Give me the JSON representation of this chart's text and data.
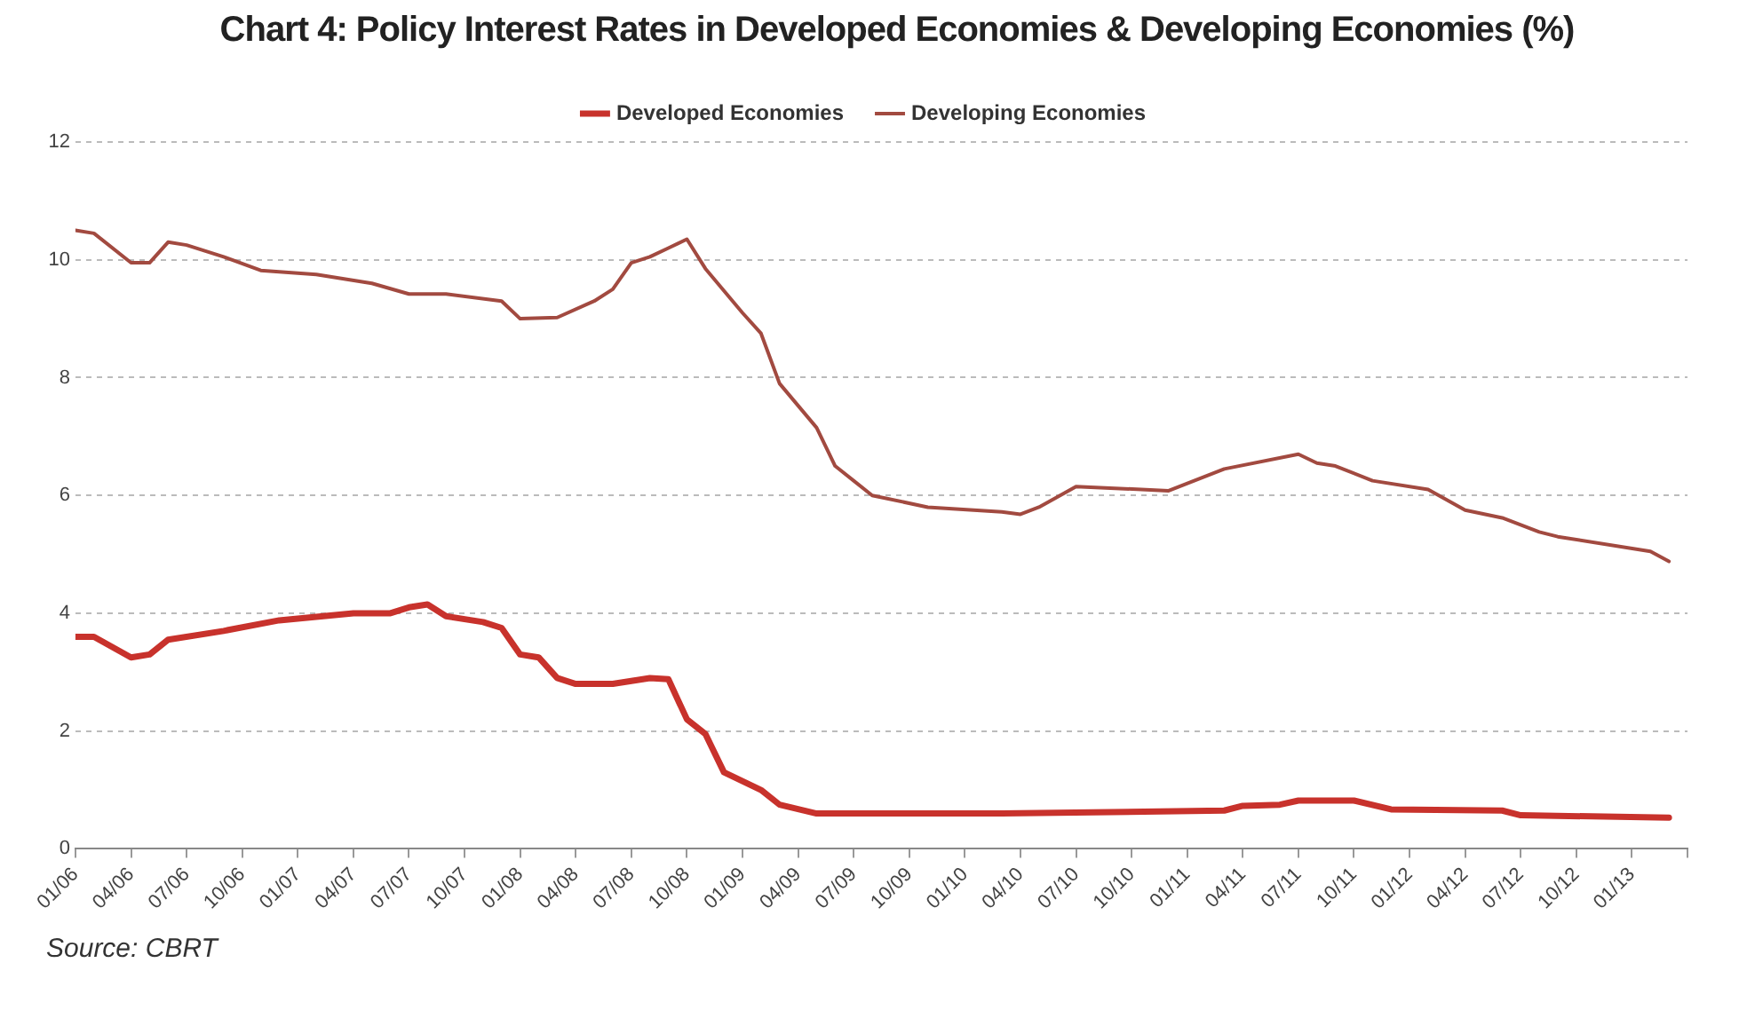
{
  "chart_data": {
    "type": "line",
    "title": "Chart 4: Policy Interest Rates in Developed Economies & Developing Economies (%)",
    "annotations": [
      "Source: CBRT"
    ],
    "xlim": [
      "2006-01",
      "2013-04"
    ],
    "xticks": [
      {
        "value": "2006-01",
        "label": "01/06"
      },
      {
        "value": "2006-04",
        "label": "04/06"
      },
      {
        "value": "2006-07",
        "label": "07/06"
      },
      {
        "value": "2006-10",
        "label": "10/06"
      },
      {
        "value": "2007-01",
        "label": "01/07"
      },
      {
        "value": "2007-04",
        "label": "04/07"
      },
      {
        "value": "2007-07",
        "label": "07/07"
      },
      {
        "value": "2007-10",
        "label": "10/07"
      },
      {
        "value": "2008-01",
        "label": "01/08"
      },
      {
        "value": "2008-04",
        "label": "04/08"
      },
      {
        "value": "2008-07",
        "label": "07/08"
      },
      {
        "value": "2008-10",
        "label": "10/08"
      },
      {
        "value": "2009-01",
        "label": "01/09"
      },
      {
        "value": "2009-04",
        "label": "04/09"
      },
      {
        "value": "2009-07",
        "label": "07/09"
      },
      {
        "value": "2009-10",
        "label": "10/09"
      },
      {
        "value": "2010-01",
        "label": "01/10"
      },
      {
        "value": "2010-04",
        "label": "04/10"
      },
      {
        "value": "2010-07",
        "label": "07/10"
      },
      {
        "value": "2010-10",
        "label": "10/10"
      },
      {
        "value": "2011-01",
        "label": "01/11"
      },
      {
        "value": "2011-04",
        "label": "04/11"
      },
      {
        "value": "2011-07",
        "label": "07/11"
      },
      {
        "value": "2011-10",
        "label": "10/11"
      },
      {
        "value": "2012-01",
        "label": "01/12"
      },
      {
        "value": "2012-04",
        "label": "04/12"
      },
      {
        "value": "2012-07",
        "label": "07/12"
      },
      {
        "value": "2012-10",
        "label": "10/12"
      },
      {
        "value": "2013-01",
        "label": "01/13"
      },
      {
        "value": "2013-04",
        "label": null
      }
    ],
    "ylim": [
      0,
      12
    ],
    "yticks": [
      0,
      2,
      4,
      6,
      8,
      10,
      12
    ],
    "grid": "y",
    "legend": "top",
    "marker": "none",
    "line_style": "solid",
    "series": [
      {
        "name": "Developed Economies",
        "color": "#c8322c",
        "x": [
          "2006-01",
          "2006-02",
          "2006-04",
          "2006-05",
          "2006-06",
          "2006-09",
          "2006-12",
          "2007-04",
          "2007-06",
          "2007-07",
          "2007-08",
          "2007-09",
          "2007-11",
          "2007-12",
          "2008-01",
          "2008-02",
          "2008-03",
          "2008-04",
          "2008-06",
          "2008-08",
          "2008-09",
          "2008-10",
          "2008-11",
          "2008-12",
          "2009-02",
          "2009-03",
          "2009-05",
          "2010-03",
          "2011-03",
          "2011-04",
          "2011-06",
          "2011-07",
          "2011-10",
          "2011-12",
          "2012-06",
          "2012-07",
          "2013-03"
        ],
        "values": [
          3.6,
          3.6,
          3.25,
          3.3,
          3.55,
          3.7,
          3.88,
          4.0,
          4.0,
          4.1,
          4.15,
          3.95,
          3.85,
          3.75,
          3.3,
          3.25,
          2.9,
          2.8,
          2.8,
          2.9,
          2.88,
          2.2,
          1.95,
          1.3,
          1.0,
          0.75,
          0.6,
          0.6,
          0.65,
          0.73,
          0.75,
          0.82,
          0.82,
          0.67,
          0.65,
          0.57,
          0.53
        ]
      },
      {
        "name": "Developing Economies",
        "color": "#a24a40",
        "x": [
          "2006-01",
          "2006-02",
          "2006-04",
          "2006-05",
          "2006-06",
          "2006-07",
          "2006-09",
          "2006-11",
          "2007-02",
          "2007-05",
          "2007-07",
          "2007-09",
          "2007-12",
          "2008-01",
          "2008-03",
          "2008-05",
          "2008-06",
          "2008-07",
          "2008-08",
          "2008-09",
          "2008-10",
          "2008-11",
          "2009-01",
          "2009-02",
          "2009-03",
          "2009-05",
          "2009-06",
          "2009-07",
          "2009-08",
          "2009-11",
          "2010-03",
          "2010-04",
          "2010-05",
          "2010-07",
          "2010-12",
          "2011-03",
          "2011-07",
          "2011-08",
          "2011-09",
          "2011-11",
          "2012-02",
          "2012-04",
          "2012-06",
          "2012-08",
          "2012-09",
          "2013-02",
          "2013-03"
        ],
        "values": [
          10.5,
          10.45,
          9.95,
          9.95,
          10.3,
          10.25,
          10.05,
          9.82,
          9.75,
          9.6,
          9.42,
          9.42,
          9.3,
          9.0,
          9.02,
          9.3,
          9.5,
          9.95,
          10.05,
          10.2,
          10.35,
          9.85,
          9.1,
          8.75,
          7.9,
          7.15,
          6.5,
          6.25,
          6.0,
          5.8,
          5.72,
          5.68,
          5.8,
          6.15,
          6.08,
          6.45,
          6.7,
          6.55,
          6.5,
          6.25,
          6.1,
          5.75,
          5.62,
          5.38,
          5.3,
          5.05,
          4.88
        ]
      }
    ]
  }
}
